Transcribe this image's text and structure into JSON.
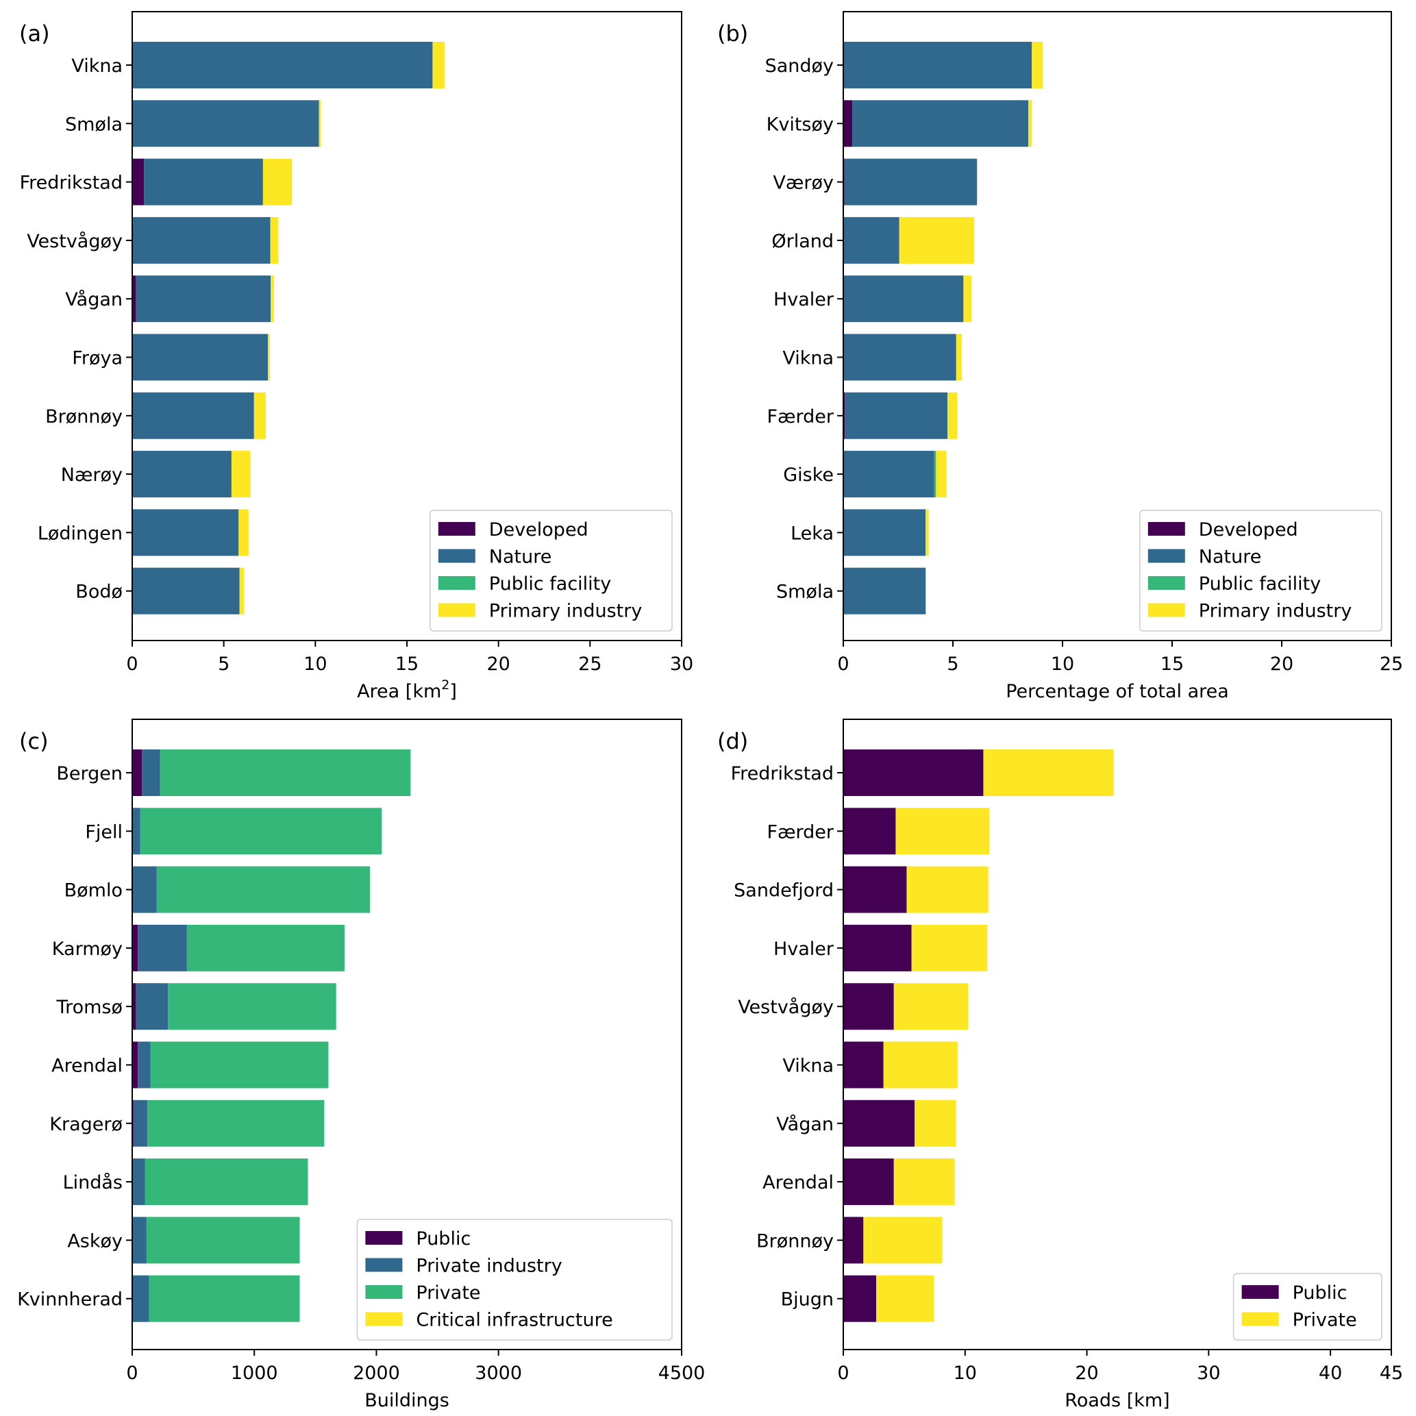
{
  "chart_data": [
    {
      "type": "bar",
      "orientation": "horizontal",
      "stacked": true,
      "panel_label": "(a)",
      "xlabel": "Area [km²]",
      "xlabel_base": "Area [km",
      "xlabel_sup": "2",
      "xlabel_end": "]",
      "xlim": [
        0,
        30
      ],
      "xticks": [
        0,
        5,
        10,
        15,
        20,
        25,
        30
      ],
      "legend_position": "lower-right",
      "categories": [
        "Vikna",
        "Smøla",
        "Fredrikstad",
        "Vestvågøy",
        "Vågan",
        "Frøya",
        "Brønnøy",
        "Nærøy",
        "Lødingen",
        "Bodø"
      ],
      "series": [
        {
          "name": "Developed",
          "color": "#440154",
          "values": [
            0,
            0,
            0.64,
            0,
            0.2,
            0,
            0,
            0,
            0,
            0
          ]
        },
        {
          "name": "Nature",
          "color": "#31688e",
          "values": [
            16.4,
            10.2,
            6.5,
            7.54,
            7.36,
            7.41,
            6.65,
            5.42,
            5.81,
            5.86
          ]
        },
        {
          "name": "Public facility",
          "color": "#35b779",
          "values": [
            0,
            0,
            0,
            0,
            0,
            0,
            0,
            0,
            0,
            0
          ]
        },
        {
          "name": "Primary industry",
          "color": "#fde725",
          "values": [
            0.65,
            0.1,
            1.58,
            0.44,
            0.18,
            0.11,
            0.64,
            1.03,
            0.54,
            0.25
          ]
        }
      ]
    },
    {
      "type": "bar",
      "orientation": "horizontal",
      "stacked": true,
      "panel_label": "(b)",
      "xlabel": "Percentage of total area",
      "xlim": [
        0,
        25
      ],
      "xticks": [
        0,
        5,
        10,
        15,
        20,
        25
      ],
      "legend_position": "lower-right",
      "categories": [
        "Sandøy",
        "Kvitsøy",
        "Værøy",
        "Ørland",
        "Hvaler",
        "Vikna",
        "Færder",
        "Giske",
        "Leka",
        "Smøla"
      ],
      "series": [
        {
          "name": "Developed",
          "color": "#440154",
          "values": [
            0,
            0.41,
            0.05,
            0,
            0,
            0,
            0.07,
            0,
            0,
            0
          ]
        },
        {
          "name": "Nature",
          "color": "#31688e",
          "values": [
            8.6,
            8.03,
            6.05,
            2.55,
            5.48,
            5.15,
            4.68,
            4.15,
            3.75,
            3.75
          ]
        },
        {
          "name": "Public facility",
          "color": "#35b779",
          "values": [
            0,
            0,
            0,
            0,
            0,
            0,
            0,
            0.08,
            0,
            0
          ]
        },
        {
          "name": "Primary industry",
          "color": "#fde725",
          "values": [
            0.5,
            0.16,
            0,
            3.42,
            0.37,
            0.25,
            0.45,
            0.47,
            0.15,
            0.03
          ]
        }
      ]
    },
    {
      "type": "bar",
      "orientation": "horizontal",
      "stacked": true,
      "panel_label": "(c)",
      "xlabel": "Buildings",
      "xlim": [
        0,
        4500
      ],
      "xticks": [
        0,
        1000,
        2000,
        3000,
        4500
      ],
      "legend_position": "lower-right",
      "categories": [
        "Bergen",
        "Fjell",
        "Bømlo",
        "Karmøy",
        "Tromsø",
        "Arendal",
        "Kragerø",
        "Lindås",
        "Askøy",
        "Kvinnherad"
      ],
      "series": [
        {
          "name": "Public",
          "color": "#440154",
          "values": [
            80,
            0,
            0,
            46,
            30,
            46,
            10,
            0,
            0,
            0
          ]
        },
        {
          "name": "Private industry",
          "color": "#31688e",
          "values": [
            149,
            65,
            201,
            402,
            263,
            103,
            113,
            104,
            115,
            138
          ]
        },
        {
          "name": "Private",
          "color": "#35b779",
          "values": [
            2051,
            1979,
            1747,
            1291,
            1377,
            1458,
            1450,
            1335,
            1257,
            1234
          ]
        },
        {
          "name": "Critical infrastructure",
          "color": "#fde725",
          "values": [
            0,
            0,
            0,
            0,
            0,
            0,
            0,
            0,
            0,
            0
          ]
        }
      ]
    },
    {
      "type": "bar",
      "orientation": "horizontal",
      "stacked": true,
      "panel_label": "(d)",
      "xlabel": "Roads [km]",
      "xlim": [
        0,
        45
      ],
      "xticks": [
        0,
        10,
        20,
        30,
        40,
        45
      ],
      "legend_position": "lower-right",
      "categories": [
        "Fredrikstad",
        "Færder",
        "Sandefjord",
        "Hvaler",
        "Vestvågøy",
        "Vikna",
        "Vågan",
        "Arendal",
        "Brønnøy",
        "Bjugn"
      ],
      "series": [
        {
          "name": "Public",
          "color": "#440154",
          "values": [
            11.5,
            4.3,
            5.2,
            5.6,
            4.15,
            3.3,
            5.85,
            4.15,
            1.65,
            2.7
          ]
        },
        {
          "name": "Private",
          "color": "#fde725",
          "values": [
            10.7,
            7.7,
            6.7,
            6.2,
            6.1,
            6.1,
            3.4,
            5.0,
            6.45,
            4.75
          ]
        }
      ]
    }
  ]
}
